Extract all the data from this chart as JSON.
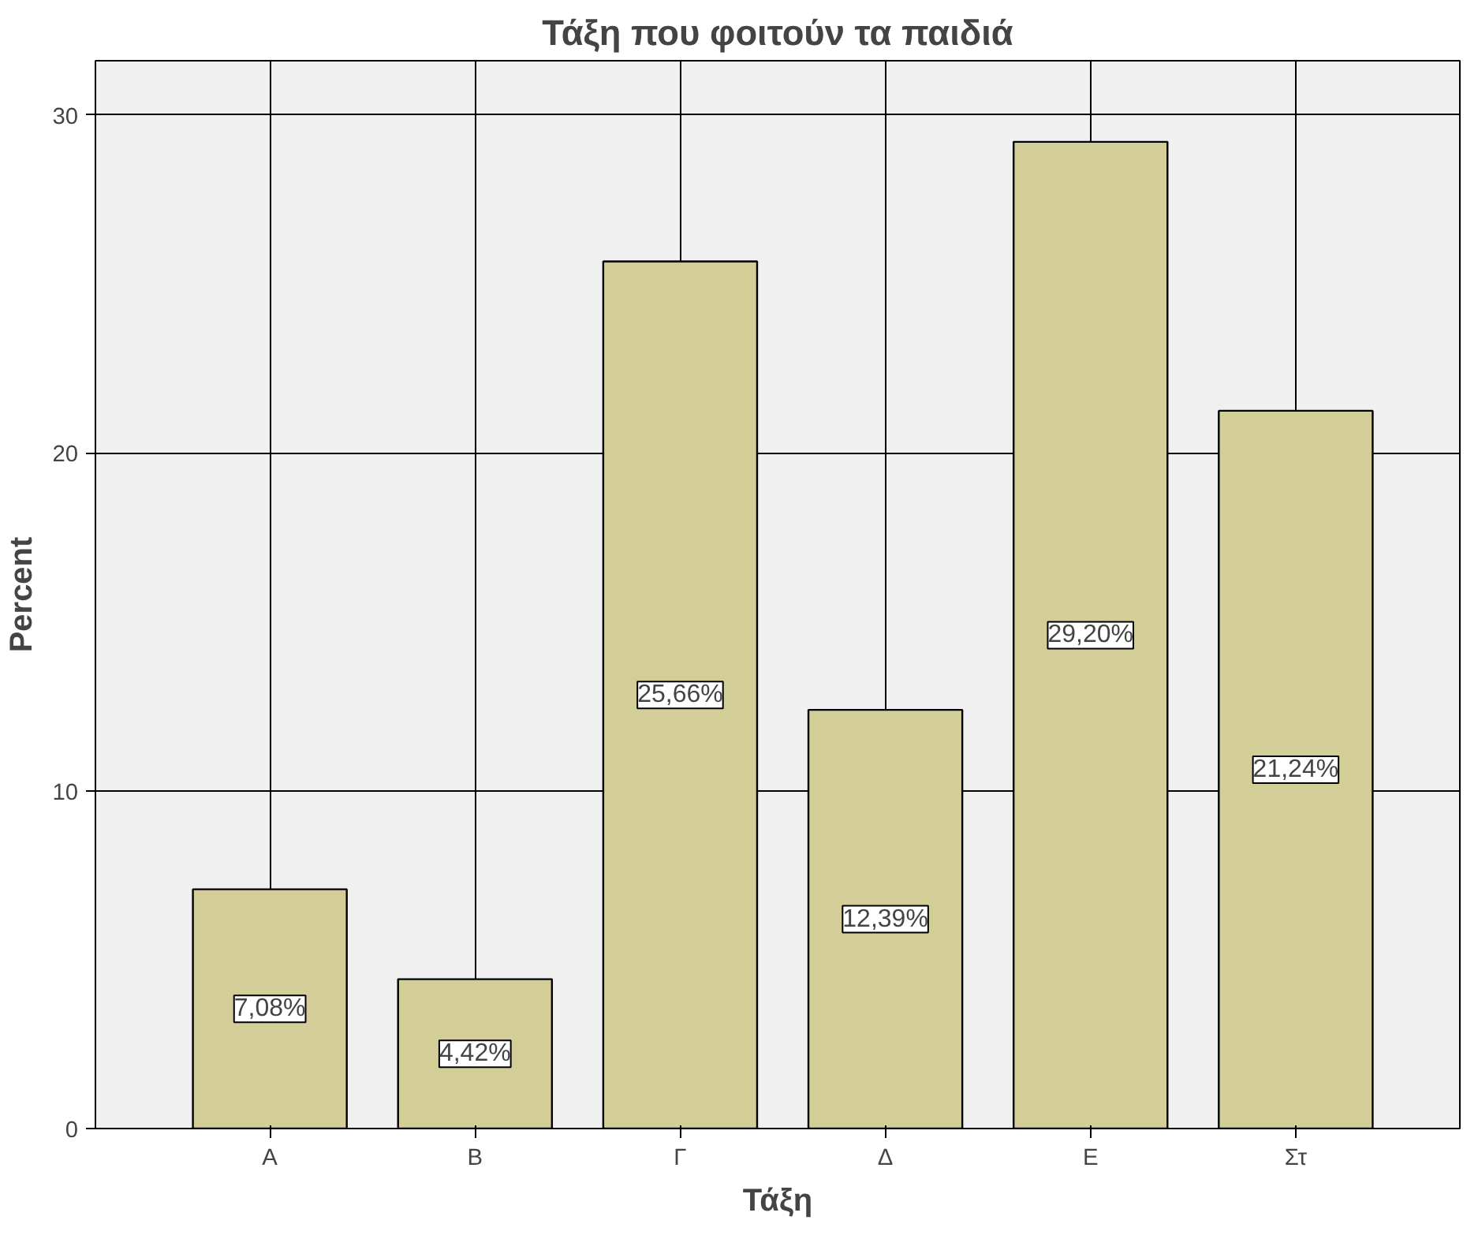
{
  "chart_data": {
    "type": "bar",
    "title": "Τάξη που φοιτούν τα παιδιά",
    "xlabel": "Τάξη",
    "ylabel": "Percent",
    "categories": [
      "Α",
      "Β",
      "Γ",
      "Δ",
      "Ε",
      "Στ"
    ],
    "values": [
      7.08,
      4.42,
      25.66,
      12.39,
      29.2,
      21.24
    ],
    "value_labels": [
      "7,08%",
      "4,42%",
      "25,66%",
      "12,39%",
      "29,20%",
      "21,24%"
    ],
    "color": "#d3ce97",
    "ylim": [
      0,
      31.6
    ],
    "yticks": [
      0,
      10,
      20,
      30
    ],
    "grid": true
  }
}
